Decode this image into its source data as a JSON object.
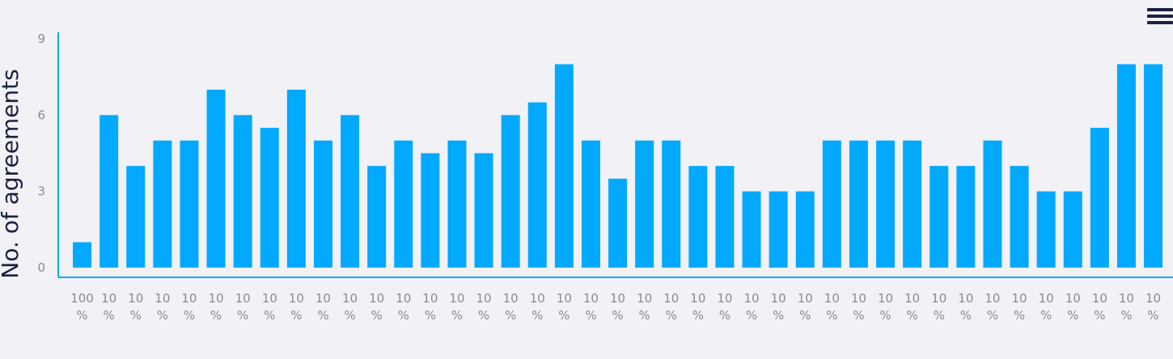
{
  "chart_data": {
    "type": "bar",
    "ylabel": "No. of agreements",
    "ylim": [
      0,
      9
    ],
    "yticks": [
      0,
      3,
      6,
      9
    ],
    "grid": false,
    "color": "#03a9fc",
    "categories": [
      "100 %",
      "10 %",
      "10 %",
      "10 %",
      "10 %",
      "10 %",
      "10 %",
      "10 %",
      "10 %",
      "10 %",
      "10 %",
      "10 %",
      "10 %",
      "10 %",
      "10 %",
      "10 %",
      "10 %",
      "10 %",
      "10 %",
      "10 %",
      "10 %",
      "10 %",
      "10 %",
      "10 %",
      "10 %",
      "10 %",
      "10 %",
      "10 %",
      "10 %",
      "10 %",
      "10 %",
      "10 %",
      "10 %",
      "10 %",
      "10 %",
      "10 %",
      "10 %",
      "10 %",
      "10 %",
      "10 %",
      "10 %"
    ],
    "values": [
      1,
      6,
      4,
      5,
      5,
      7,
      6,
      5.5,
      7,
      5,
      6,
      4,
      5,
      4.5,
      5,
      4.5,
      6,
      6.5,
      8,
      5,
      3.5,
      5,
      5,
      4,
      4,
      3,
      3,
      3,
      5,
      5,
      5,
      5,
      4,
      4,
      5,
      4,
      3,
      3,
      5.5,
      8,
      8
    ]
  },
  "menu": {
    "icon": "hamburger-menu-icon"
  }
}
